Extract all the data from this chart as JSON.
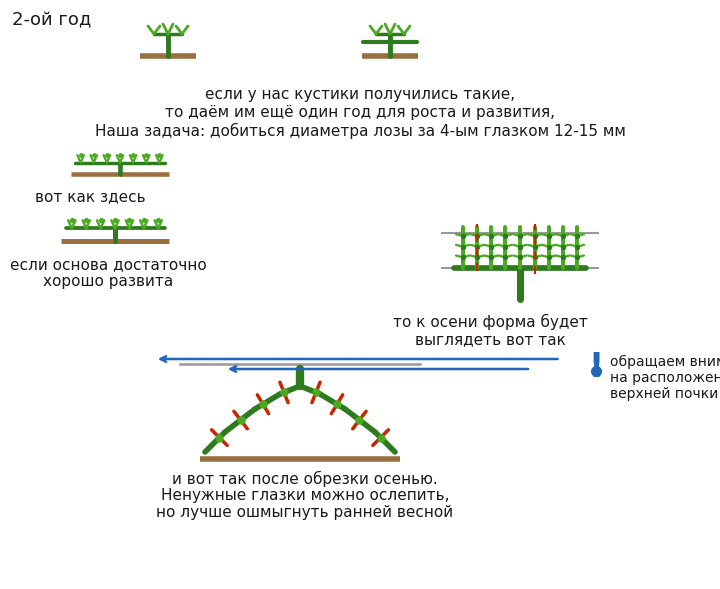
{
  "bg_color": "#ffffff",
  "text_color": "#1a1a1a",
  "green_dark": "#2d7a1f",
  "green_light": "#4aaa20",
  "green_mid": "#3a9020",
  "brown": "#9a7040",
  "red": "#cc2200",
  "blue": "#2266bb",
  "gray": "#999999",
  "title_label": "2-ой год",
  "text1": "если у нас кустики получились такие,",
  "text2": "то даём им ещё один год для роста и развития,",
  "text3": "Наша задача: добиться диаметра лозы за 4-ым глазком 12-15 мм",
  "text_left1": "вот как здесь",
  "text_left2": "если основа достаточно\nхорошо развита",
  "text_right2": "то к осени форма будет\nвыглядеть вот так",
  "text_attention": "обращаем внимание\nна расположение\nверхней почки",
  "text_bottom1": "и вот так после обрезки осенью.",
  "text_bottom2": "Ненужные глазки можно ослепить,",
  "text_bottom3": "но лучше ошмыгнуть ранней весной"
}
